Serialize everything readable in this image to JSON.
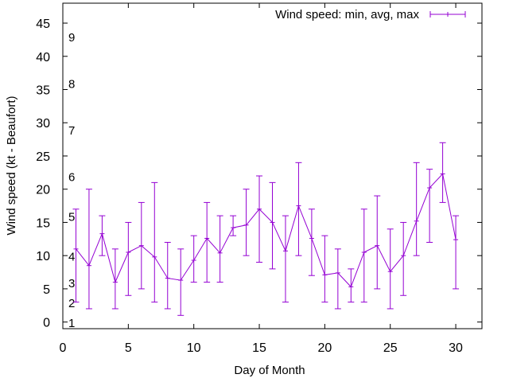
{
  "chart_data": {
    "type": "line",
    "xlabel": "Day of Month",
    "ylabel": "Wind speed (kt - Beaufort)",
    "xlim": [
      0,
      32
    ],
    "ylim": [
      -1,
      48
    ],
    "x_ticks": [
      0,
      5,
      10,
      15,
      20,
      25,
      30
    ],
    "y_ticks": [
      0,
      5,
      10,
      15,
      20,
      25,
      30,
      35,
      40,
      45
    ],
    "grid": false,
    "legend_position": "top-right",
    "series_color": "#9400d3",
    "series": [
      {
        "name": "Wind speed: min, avg, max",
        "x": [
          1,
          2,
          3,
          4,
          5,
          6,
          7,
          8,
          9,
          10,
          11,
          12,
          13,
          14,
          15,
          16,
          17,
          18,
          19,
          20,
          21,
          22,
          23,
          24,
          25,
          26,
          27,
          28,
          29,
          30
        ],
        "avg": [
          11,
          8.5,
          13.3,
          6,
          10.5,
          11.5,
          9.8,
          6.6,
          6.3,
          9.3,
          12.6,
          10.4,
          14.2,
          14.6,
          17,
          15,
          10.7,
          17.5,
          12.6,
          7.1,
          7.4,
          5.3,
          10.5,
          11.5,
          7.6,
          10,
          15.2,
          20.2,
          22.3,
          12.4
        ],
        "min": [
          3,
          2,
          10,
          2,
          4,
          5,
          3,
          2,
          1,
          6,
          6,
          6,
          13,
          10,
          9,
          8,
          3,
          10,
          7,
          3,
          2,
          3,
          3,
          5,
          2,
          4,
          10,
          12,
          18,
          5
        ],
        "max": [
          17,
          20,
          16,
          11,
          15,
          18,
          21,
          12,
          11,
          13,
          18,
          16,
          16,
          20,
          22,
          21,
          16,
          24,
          17,
          13,
          11,
          8,
          17,
          19,
          14,
          15,
          24,
          23,
          27,
          16
        ]
      }
    ],
    "annotations": [
      {
        "text": "1",
        "y": -1
      },
      {
        "text": "2",
        "y": 2
      },
      {
        "text": "3",
        "y": 5
      },
      {
        "text": "4",
        "y": 9
      },
      {
        "text": "5",
        "y": 15
      },
      {
        "text": "6",
        "y": 21
      },
      {
        "text": "7",
        "y": 28
      },
      {
        "text": "8",
        "y": 35
      },
      {
        "text": "9",
        "y": 42
      }
    ]
  }
}
